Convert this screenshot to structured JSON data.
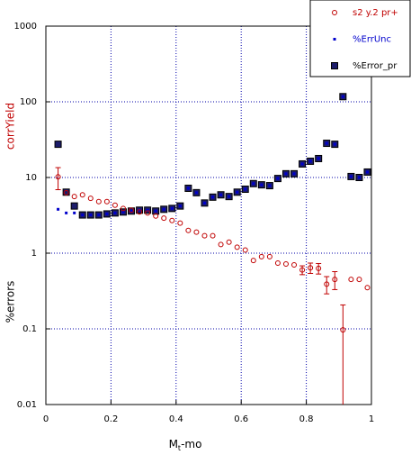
{
  "chart_data": {
    "type": "scatter",
    "xlabel": {
      "main": "M",
      "sub": "t",
      "rest": "-mo"
    },
    "ylabels": [
      {
        "text": "corrYield",
        "color": "#c00000"
      },
      {
        "text": "%errors",
        "color": "#000000"
      }
    ],
    "xlim": [
      0,
      1
    ],
    "xticks": [
      0,
      0.2,
      0.4,
      0.6,
      0.8,
      1
    ],
    "ylim": [
      0.01,
      1000
    ],
    "yticks": [
      0.01,
      0.1,
      1,
      10,
      100,
      1000
    ],
    "ylog": true,
    "grid": true,
    "legend": "top-right",
    "x": [
      0.0375,
      0.0625,
      0.0875,
      0.1125,
      0.1375,
      0.1625,
      0.1875,
      0.2125,
      0.2375,
      0.2625,
      0.2875,
      0.3125,
      0.3375,
      0.3625,
      0.3875,
      0.4125,
      0.4375,
      0.4625,
      0.4875,
      0.5125,
      0.5375,
      0.5625,
      0.5875,
      0.6125,
      0.6375,
      0.6625,
      0.6875,
      0.7125,
      0.7375,
      0.7625,
      0.7875,
      0.8125,
      0.8375,
      0.8625,
      0.8875,
      0.9125,
      0.9375,
      0.9625,
      0.9875
    ],
    "series": [
      {
        "name": "s2 y.2 pr+",
        "color": "#c00000",
        "marker": "circle",
        "values": [
          10.2,
          6.3,
          5.6,
          5.9,
          5.3,
          4.8,
          4.8,
          4.3,
          3.9,
          3.7,
          3.5,
          3.4,
          3.1,
          2.9,
          2.7,
          2.5,
          2.0,
          1.9,
          1.7,
          1.7,
          1.3,
          1.4,
          1.2,
          1.1,
          0.8,
          0.9,
          0.9,
          0.74,
          0.72,
          0.7,
          0.6,
          0.64,
          0.63,
          0.39,
          0.45,
          0.097,
          0.45,
          0.45,
          0.35
        ],
        "errors": [
          3.3,
          null,
          null,
          null,
          null,
          null,
          null,
          null,
          null,
          null,
          null,
          null,
          null,
          null,
          null,
          null,
          null,
          null,
          null,
          null,
          null,
          null,
          null,
          null,
          null,
          null,
          null,
          null,
          null,
          null,
          0.08,
          0.1,
          0.1,
          0.1,
          0.12,
          0.11,
          null,
          null,
          null
        ]
      },
      {
        "name": "%ErrUnc",
        "color": "#0000cc",
        "marker": "dot",
        "values": [
          3.8,
          3.4,
          3.4,
          3.2,
          3.2,
          3.2,
          3.3,
          3.4,
          3.5,
          3.6,
          3.7,
          3.7,
          3.6,
          3.8,
          3.9,
          4.2,
          7.2,
          6.3,
          4.6,
          5.5,
          5.9,
          5.6,
          6.4,
          7.0,
          8.3,
          8.0,
          7.8,
          9.7,
          11.2,
          11.2,
          15.1,
          16.4,
          17.8,
          28.3,
          27.5,
          117,
          10.3,
          10,
          11.8
        ]
      },
      {
        "name": "%Error_pr",
        "color": "#000000",
        "marker": "square",
        "values": [
          27.5,
          6.4,
          4.2,
          3.2,
          3.2,
          3.2,
          3.3,
          3.4,
          3.5,
          3.6,
          3.7,
          3.7,
          3.6,
          3.8,
          3.9,
          4.2,
          7.2,
          6.3,
          4.6,
          5.5,
          5.9,
          5.6,
          6.4,
          7.0,
          8.3,
          8.0,
          7.8,
          9.7,
          11.2,
          11.2,
          15.1,
          16.4,
          17.8,
          28.3,
          27.5,
          117,
          10.3,
          10,
          11.8
        ]
      }
    ]
  }
}
